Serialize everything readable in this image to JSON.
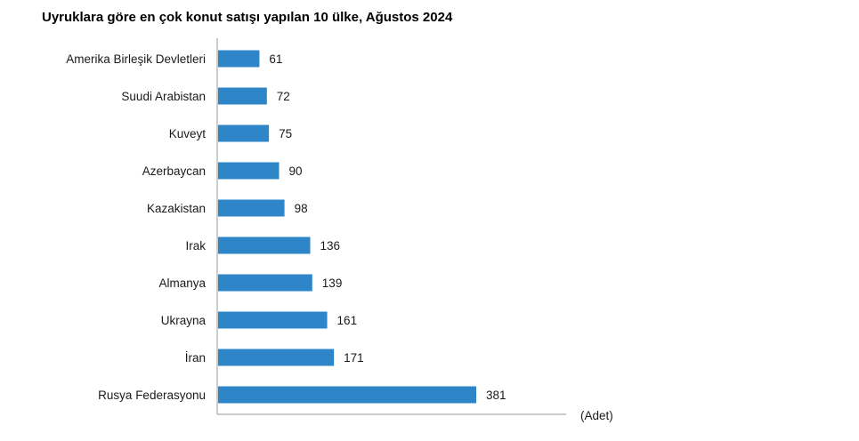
{
  "chart_data": {
    "type": "bar",
    "orientation": "horizontal",
    "title": "Uyruklara göre en çok konut satışı yapılan 10 ülke, Ağustos 2024",
    "unit": "(Adet)",
    "categories": [
      "Amerika Birleşik Devletleri",
      "Suudi Arabistan",
      "Kuveyt",
      "Azerbaycan",
      "Kazakistan",
      "Irak",
      "Almanya",
      "Ukrayna",
      "İran",
      "Rusya Federasyonu"
    ],
    "values": [
      61,
      72,
      75,
      90,
      98,
      136,
      139,
      161,
      171,
      381
    ],
    "value_labels": [
      "61",
      "72",
      "75",
      "90",
      "98",
      "136",
      "139",
      "161",
      "171",
      "381"
    ],
    "xlim": [
      0,
      515
    ],
    "bar_color": "#2e86c8",
    "grid": false,
    "legend": "none"
  }
}
